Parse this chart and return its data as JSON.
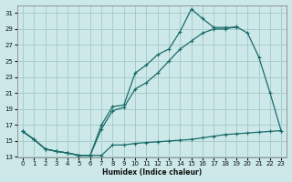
{
  "xlabel": "Humidex (Indice chaleur)",
  "background_color": "#cce8e8",
  "grid_color": "#aacccc",
  "line_color": "#1a6b6b",
  "xlim": [
    -0.5,
    23.5
  ],
  "ylim": [
    13,
    32
  ],
  "yticks": [
    13,
    15,
    17,
    19,
    21,
    23,
    25,
    27,
    29,
    31
  ],
  "xticks": [
    0,
    1,
    2,
    3,
    4,
    5,
    6,
    7,
    8,
    9,
    10,
    11,
    12,
    13,
    14,
    15,
    16,
    17,
    18,
    19,
    20,
    21,
    22,
    23
  ],
  "line1_x": [
    0,
    1,
    2,
    3,
    4,
    5,
    6,
    7,
    8,
    9,
    10,
    11,
    12,
    13,
    14,
    15,
    16,
    17,
    18,
    19,
    20,
    21,
    22,
    23
  ],
  "line1_y": [
    16.2,
    15.2,
    14.0,
    13.7,
    13.5,
    13.2,
    13.2,
    13.2,
    14.5,
    14.5,
    14.7,
    14.8,
    14.9,
    15.0,
    15.1,
    15.2,
    15.4,
    15.6,
    15.8,
    15.9,
    16.0,
    16.1,
    16.2,
    16.3
  ],
  "line2_x": [
    0,
    1,
    2,
    3,
    4,
    5,
    6,
    7,
    8,
    9,
    10,
    11,
    12,
    13,
    14,
    15,
    16,
    17,
    18,
    19,
    20,
    21,
    22,
    23
  ],
  "line2_y": [
    16.2,
    15.2,
    14.0,
    13.7,
    13.5,
    13.2,
    13.2,
    16.5,
    18.8,
    19.2,
    21.5,
    22.3,
    23.5,
    25.0,
    26.5,
    27.5,
    28.5,
    29.0,
    29.0,
    29.3,
    28.5,
    25.5,
    21.0,
    16.2
  ],
  "line3_x": [
    0,
    1,
    2,
    3,
    4,
    5,
    6,
    7,
    8,
    9,
    10,
    11,
    12,
    13,
    14,
    15,
    16,
    17,
    18,
    19,
    20,
    21,
    22,
    23
  ],
  "line3_y": [
    16.2,
    15.2,
    14.0,
    13.7,
    13.5,
    13.2,
    13.2,
    17.0,
    19.3,
    19.5,
    23.5,
    24.5,
    25.8,
    26.5,
    28.7,
    31.5,
    30.3,
    29.2,
    29.2,
    29.2,
    null,
    null,
    null,
    null
  ]
}
